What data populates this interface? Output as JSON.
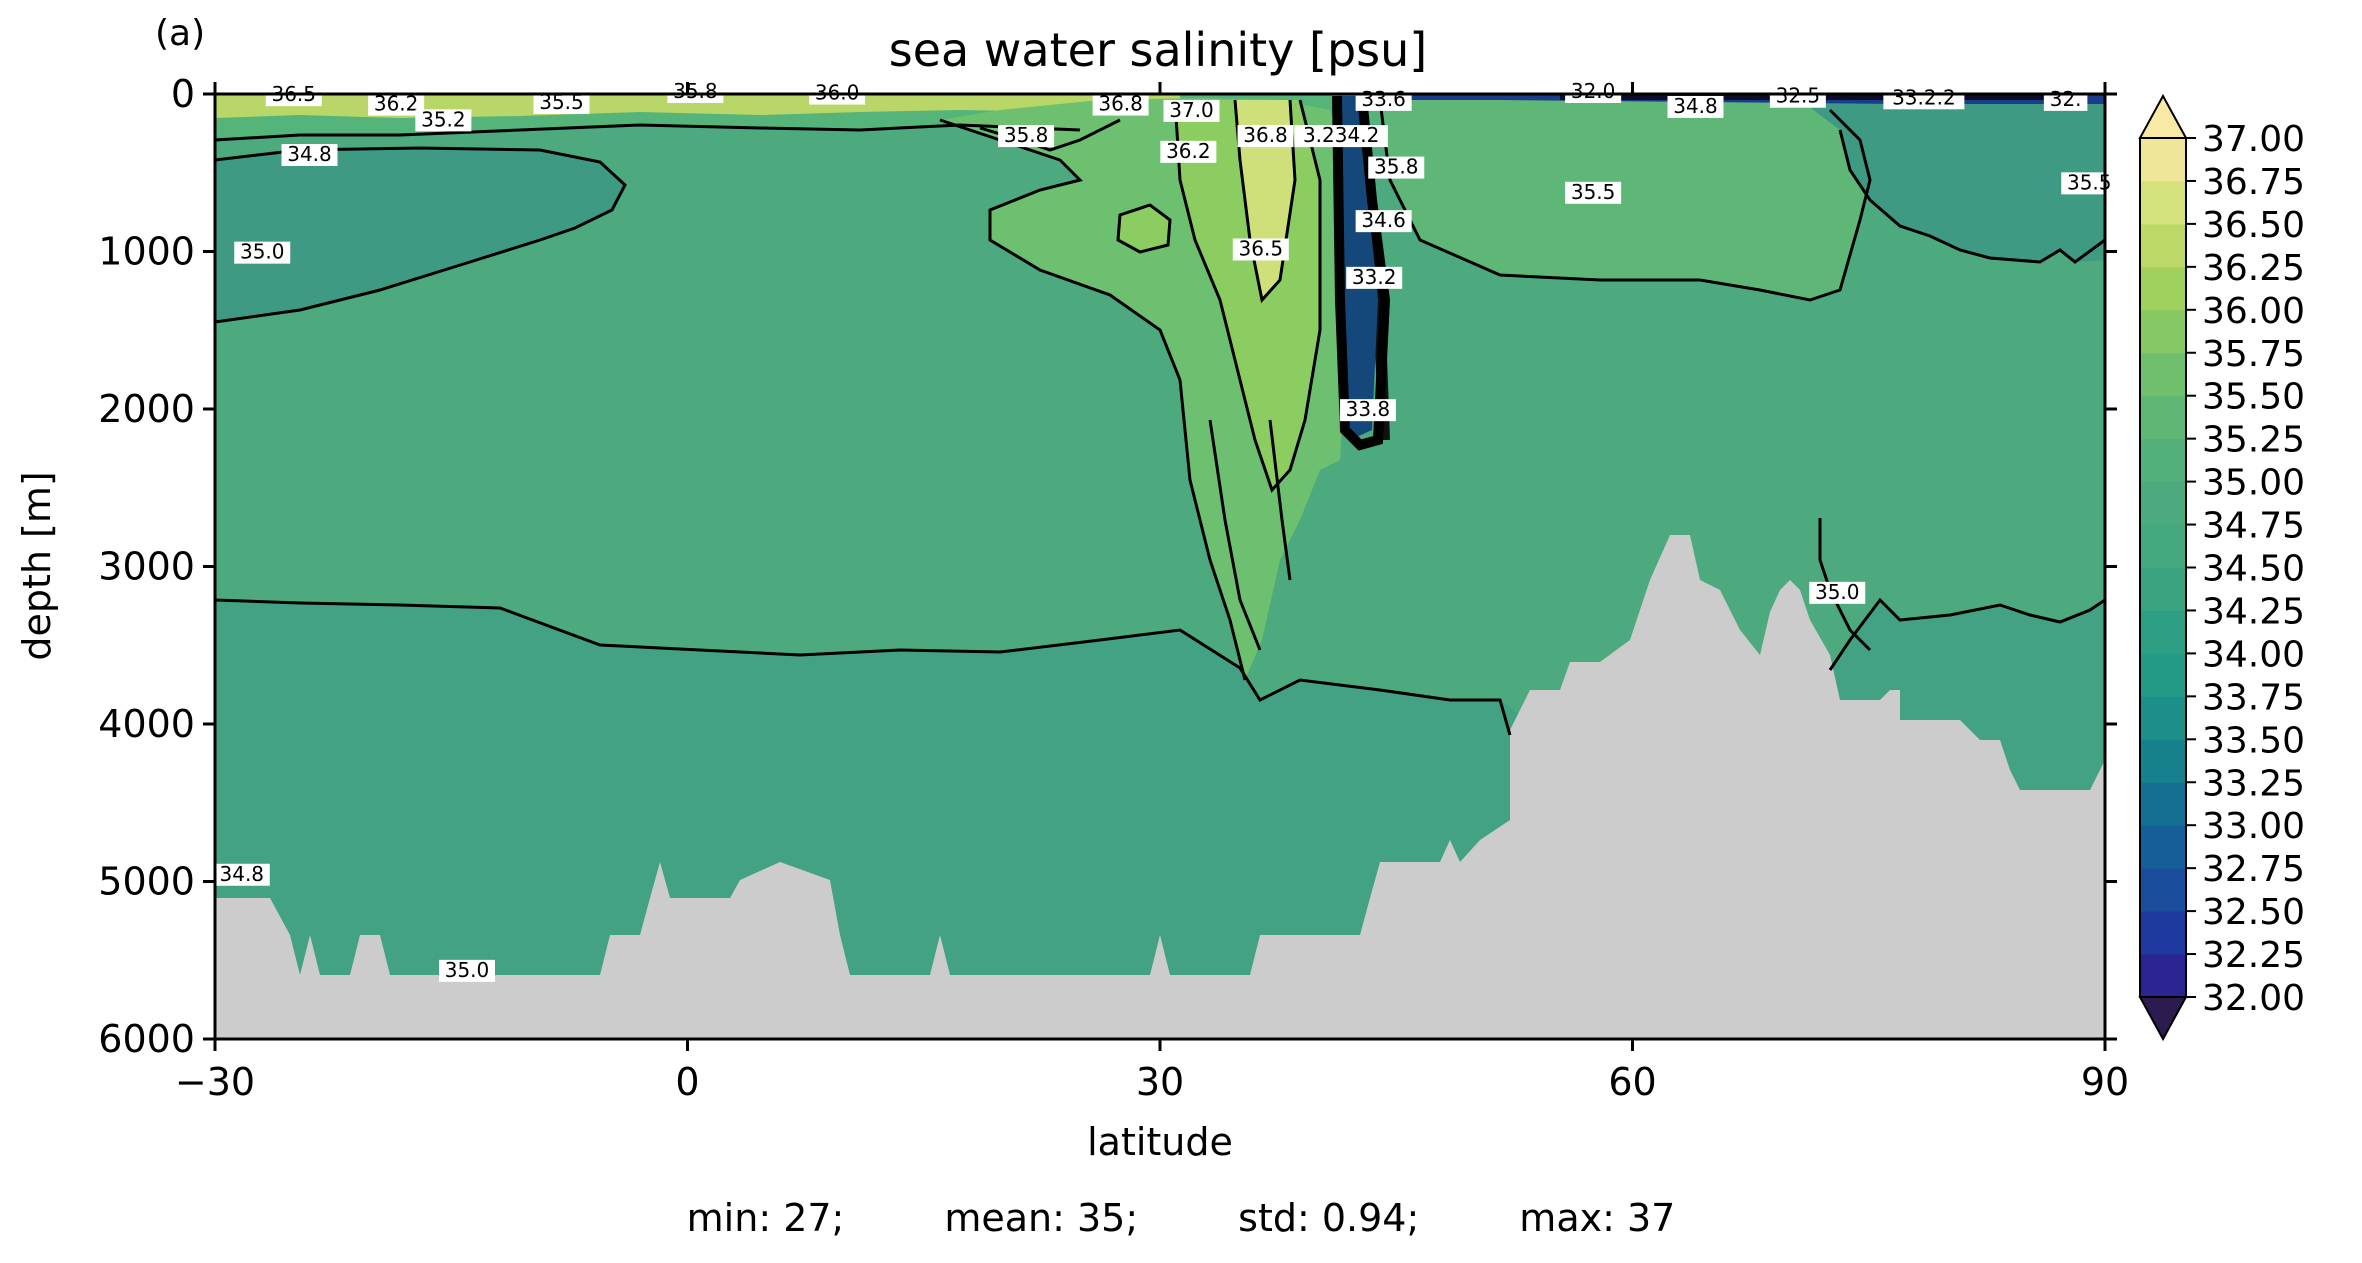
{
  "chart_data": {
    "type": "contour",
    "panel_label": "(a)",
    "title": "sea water salinity [psu]",
    "xlabel": "latitude",
    "ylabel": "depth [m]",
    "xlim": [
      -30,
      90
    ],
    "ylim": [
      6000,
      0
    ],
    "xticks": [
      -30,
      0,
      30,
      60,
      90
    ],
    "xtick_labels": [
      "−30",
      "0",
      "30",
      "60",
      "90"
    ],
    "yticks": [
      0,
      1000,
      2000,
      3000,
      4000,
      5000,
      6000
    ],
    "yscale": "linear (depth increasing downward)",
    "colormap": "haline (dark blue to yellow)",
    "colorbar": {
      "levels": [
        32.0,
        32.25,
        32.5,
        32.75,
        33.0,
        33.25,
        33.5,
        33.75,
        34.0,
        34.25,
        34.5,
        34.75,
        35.0,
        35.25,
        35.5,
        35.75,
        36.0,
        36.25,
        36.5,
        36.75,
        37.0
      ],
      "labels": [
        "32.00",
        "32.25",
        "32.50",
        "32.75",
        "33.00",
        "33.25",
        "33.50",
        "33.75",
        "34.00",
        "34.25",
        "34.50",
        "34.75",
        "35.00",
        "35.25",
        "35.50",
        "35.75",
        "36.00",
        "36.25",
        "36.50",
        "36.75",
        "37.00"
      ],
      "extend": "both"
    },
    "contour_labels": [
      {
        "text": "36.5",
        "lat": -25,
        "depth": 20
      },
      {
        "text": "36.2",
        "lat": -18.5,
        "depth": 80
      },
      {
        "text": "35.2",
        "lat": -15.5,
        "depth": 180
      },
      {
        "text": "35.5",
        "lat": -8,
        "depth": 70
      },
      {
        "text": "35.8",
        "lat": 0.5,
        "depth": 0
      },
      {
        "text": "36.0",
        "lat": 9.5,
        "depth": 10
      },
      {
        "text": "34.8",
        "lat": -24,
        "depth": 400
      },
      {
        "text": "35.8",
        "lat": 21.5,
        "depth": 280
      },
      {
        "text": "35.0",
        "lat": -27,
        "depth": 1020
      },
      {
        "text": "36.8",
        "lat": 27.5,
        "depth": 80
      },
      {
        "text": "37.0",
        "lat": 32,
        "depth": 120
      },
      {
        "text": "36.2",
        "lat": 31.8,
        "depth": 380
      },
      {
        "text": "36.8",
        "lat": 36.7,
        "depth": 280
      },
      {
        "text": "36.5",
        "lat": 36.4,
        "depth": 1000
      },
      {
        "text": "3.234.2",
        "lat": 41.5,
        "depth": 280
      },
      {
        "text": "33.6",
        "lat": 44.2,
        "depth": 50
      },
      {
        "text": "35.8",
        "lat": 45,
        "depth": 480
      },
      {
        "text": "34.6",
        "lat": 44.2,
        "depth": 820
      },
      {
        "text": "33.2",
        "lat": 43.6,
        "depth": 1180
      },
      {
        "text": "33.8",
        "lat": 43.2,
        "depth": 2020
      },
      {
        "text": "32.0",
        "lat": 57.5,
        "depth": 0
      },
      {
        "text": "34.8",
        "lat": 64,
        "depth": 95
      },
      {
        "text": "32.5",
        "lat": 70.5,
        "depth": 30
      },
      {
        "text": "33.2.2",
        "lat": 78.5,
        "depth": 40
      },
      {
        "text": "32.",
        "lat": 87.5,
        "depth": 50
      },
      {
        "text": "35.5",
        "lat": 57.5,
        "depth": 640
      },
      {
        "text": "35.5",
        "lat": 89,
        "depth": 580
      },
      {
        "text": "35.0",
        "lat": 73,
        "depth": 3180
      },
      {
        "text": "34.8",
        "lat": -28.3,
        "depth": 4970
      },
      {
        "text": "35.0",
        "lat": -14,
        "depth": 5580
      }
    ],
    "stats": {
      "min": "min: 27;",
      "mean": "mean: 35;",
      "std": "std: 0.94;",
      "max": "max: 37"
    }
  }
}
